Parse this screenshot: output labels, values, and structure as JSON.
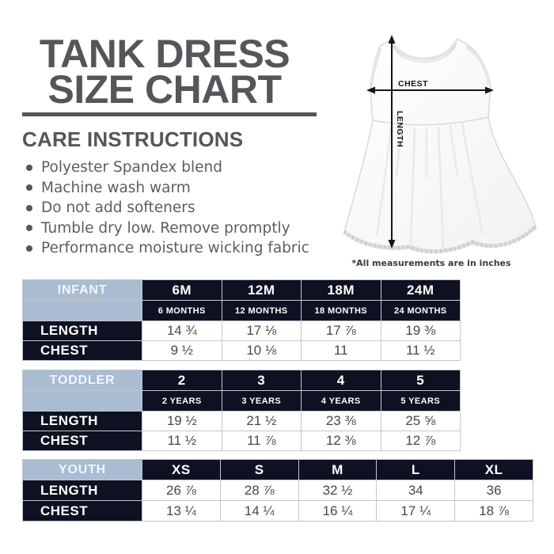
{
  "header": {
    "title_line1": "TANK DRESS",
    "title_line2": "SIZE CHART"
  },
  "care": {
    "heading": "CARE INSTRUCTIONS",
    "items": [
      "Polyester Spandex blend",
      "Machine wash warm",
      "Do not add softeners",
      "Tumble dry low. Remove promptly",
      "Performance moisture wicking fabric"
    ]
  },
  "diagram": {
    "chest_label": "CHEST",
    "length_label": "LENGTH",
    "note": "*All measurements are in inches"
  },
  "colors": {
    "title_gray": "#55565a",
    "table_navy": "#0e1121",
    "table_blue": "#a9bcd2",
    "value_text": "#47474c"
  },
  "tables": [
    {
      "label": "INFANT",
      "columns": [
        "6M",
        "12M",
        "18M",
        "24M"
      ],
      "subcolumns": [
        "6 MONTHS",
        "12 MONTHS",
        "18 MONTHS",
        "24 MONTHS"
      ],
      "rows": [
        {
          "label": "LENGTH",
          "values": [
            "14 ¾",
            "17 ⅛",
            "17 ⅞",
            "19 ⅜"
          ]
        },
        {
          "label": "CHEST",
          "values": [
            "9 ½",
            "10 ⅛",
            "11",
            "11 ½"
          ]
        }
      ]
    },
    {
      "label": "TODDLER",
      "columns": [
        "2",
        "3",
        "4",
        "5"
      ],
      "subcolumns": [
        "2 YEARS",
        "3 YEARS",
        "4 YEARS",
        "5 YEARS"
      ],
      "rows": [
        {
          "label": "LENGTH",
          "values": [
            "19 ½",
            "21 ½",
            "23 ⅜",
            "25 ⅝"
          ]
        },
        {
          "label": "CHEST",
          "values": [
            "11 ½",
            "11 ⅞",
            "12 ⅜",
            "12 ⅞"
          ]
        }
      ]
    },
    {
      "label": "YOUTH",
      "columns": [
        "XS",
        "S",
        "M",
        "L",
        "XL"
      ],
      "subcolumns": null,
      "rows": [
        {
          "label": "LENGTH",
          "values": [
            "26 ⅞",
            "28 ⅞",
            "32 ½",
            "34",
            "36"
          ]
        },
        {
          "label": "CHEST",
          "values": [
            "13 ¼",
            "14 ¼",
            "16 ¼",
            "17 ¼",
            "18 ⅞"
          ]
        }
      ]
    }
  ]
}
